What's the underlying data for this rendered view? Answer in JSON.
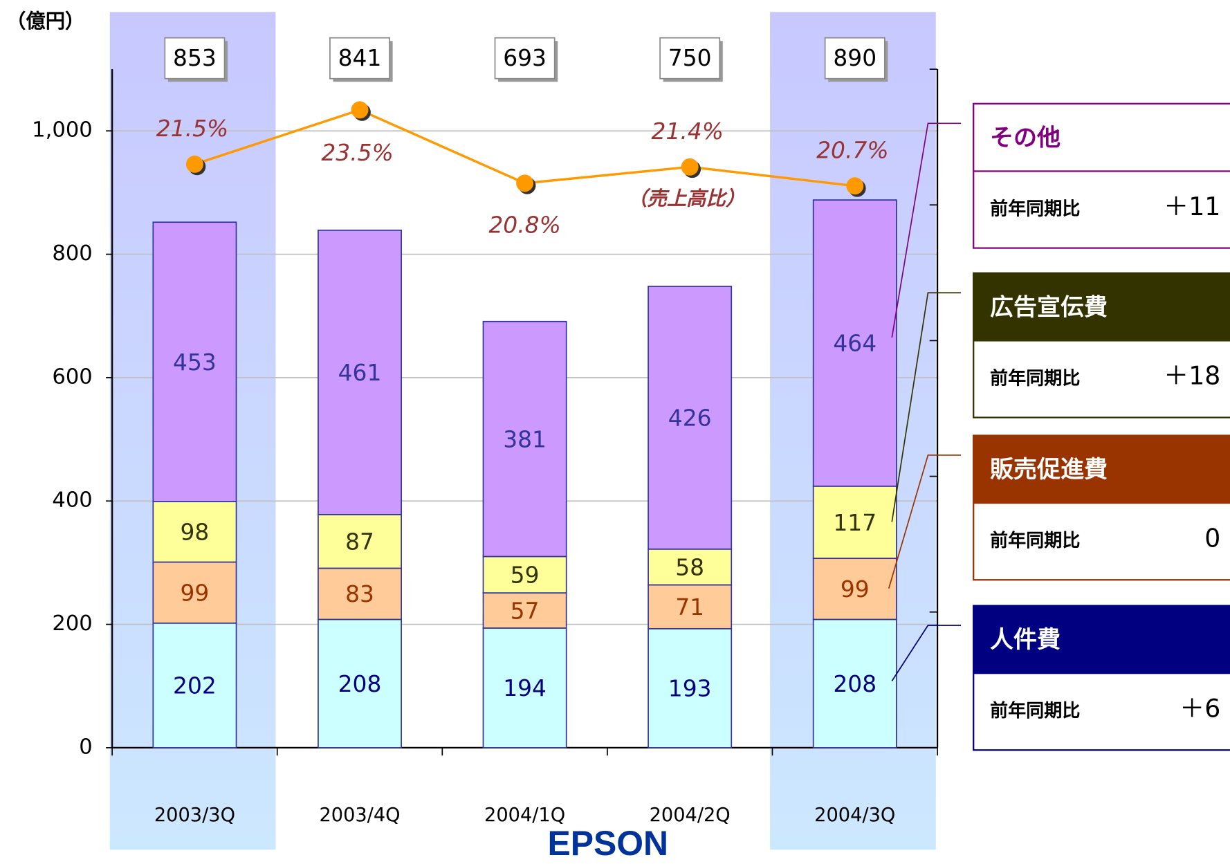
{
  "chart_data": {
    "type": "bar",
    "stacked": true,
    "unit_label": "（億円）",
    "categories": [
      "2003/3Q",
      "2003/4Q",
      "2004/1Q",
      "2004/2Q",
      "2004/3Q"
    ],
    "highlighted": [
      0,
      4
    ],
    "series": [
      {
        "name": "人件費",
        "color": "#ccffff",
        "label_color": "#000080",
        "legend_color": "#000080",
        "values": [
          202,
          208,
          194,
          193,
          208
        ],
        "yoy": "＋6"
      },
      {
        "name": "販売促進費",
        "color": "#ffcc99",
        "label_color": "#993300",
        "legend_color": "#993300",
        "values": [
          99,
          83,
          57,
          71,
          99
        ],
        "yoy": "0"
      },
      {
        "name": "広告宣伝費",
        "color": "#ffff99",
        "label_color": "#333300",
        "legend_color": "#333300",
        "values": [
          98,
          87,
          59,
          58,
          117
        ],
        "yoy": "＋18"
      },
      {
        "name": "その他",
        "color": "#cc99ff",
        "label_color": "#333399",
        "legend_color": "#800080",
        "values": [
          453,
          461,
          381,
          426,
          464
        ],
        "yoy": "＋11"
      }
    ],
    "totals": [
      853,
      841,
      693,
      750,
      890
    ],
    "ratio": {
      "name": "（売上高比）",
      "color": "#ff9900",
      "label_color": "#993333",
      "axis": "y2",
      "values": [
        21.5,
        23.5,
        20.8,
        21.4,
        20.7
      ],
      "value_labels": [
        "21.5%",
        "23.5%",
        "20.8%",
        "21.4%",
        "20.7%"
      ]
    },
    "yoy_label": "前年同期比",
    "ylim": [
      0,
      1100
    ],
    "yticks": [
      0,
      200,
      400,
      600,
      800,
      {
        "value": 1000,
        "label": "1,000"
      }
    ],
    "y2lim": [
      0,
      25
    ],
    "y2ticks": [
      0,
      5,
      10,
      15,
      20,
      25
    ],
    "grid": true,
    "logo": "EPSON"
  }
}
